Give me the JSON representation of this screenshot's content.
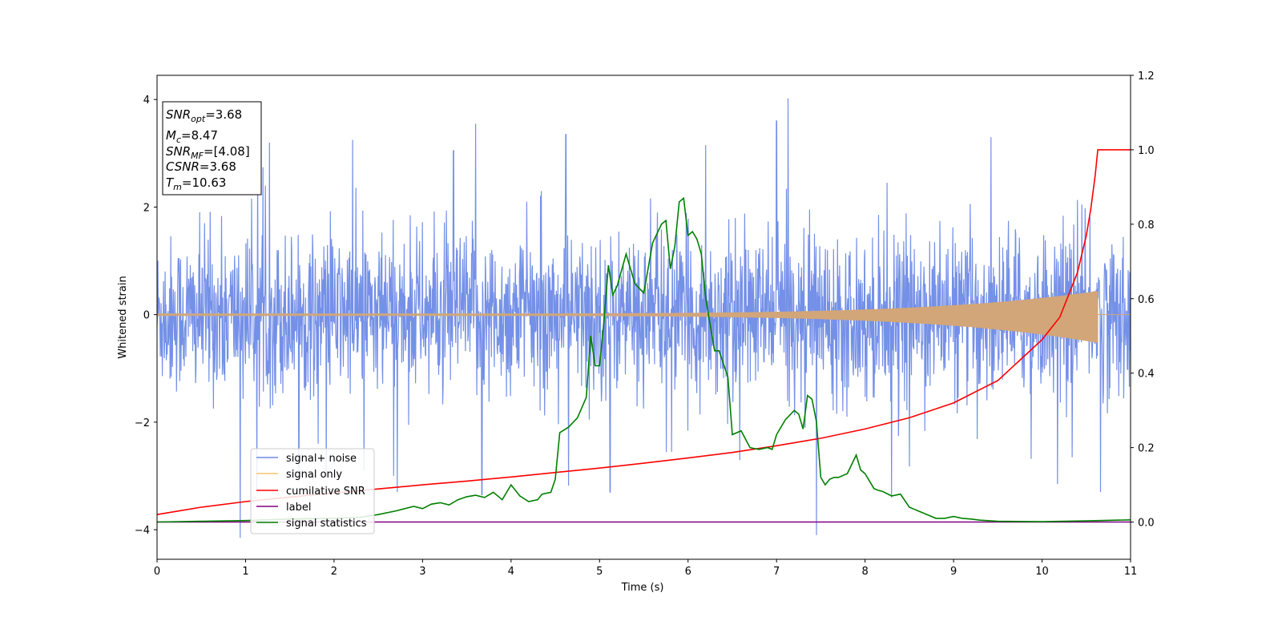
{
  "chart_data": {
    "type": "line",
    "xlabel": "Time (s)",
    "ylabel": "Whitened strain",
    "xlim": [
      0,
      11
    ],
    "ylim_left": [
      -4.55,
      4.45
    ],
    "ylim_right": [
      -0.1,
      1.2
    ],
    "x_ticks": [
      "0",
      "1",
      "2",
      "3",
      "4",
      "5",
      "6",
      "7",
      "8",
      "9",
      "10",
      "11"
    ],
    "y_left_ticks": [
      "4",
      "2",
      "0",
      "−2",
      "−4"
    ],
    "y_right_ticks": [
      "1.2",
      "1.0",
      "0.8",
      "0.6",
      "0.4",
      "0.2",
      "0.0"
    ],
    "grid": false,
    "legend_position": "lower-left",
    "info_box": {
      "snr_opt": {
        "base": "SNR",
        "sub": "opt",
        "value": "=3.68"
      },
      "mc": {
        "base": "M",
        "sub": "c",
        "value": "=8.47"
      },
      "snr_mf": {
        "base": "SNR",
        "sub": "MF",
        "value": "=[4.08]"
      },
      "csnr": {
        "base": "CSNR",
        "sub": "",
        "value": "=3.68"
      },
      "tm": {
        "base": "T",
        "sub": "m",
        "value": "=10.63"
      }
    },
    "series": [
      {
        "name": "signal+ noise",
        "axis": "left",
        "color": "#6d8ae6",
        "description_envelope": {
          "sigma": 0.72,
          "max": 4.02,
          "min": -4.15
        },
        "spikes": [
          [
            0.94,
            -4.15
          ],
          [
            1.27,
            3.2
          ],
          [
            1.6,
            -3.1
          ],
          [
            2.21,
            3.25
          ],
          [
            2.34,
            -2.9
          ],
          [
            3.35,
            3.05
          ],
          [
            3.6,
            3.55
          ],
          [
            3.67,
            -3.35
          ],
          [
            4.62,
            3.35
          ],
          [
            5.12,
            -3.3
          ],
          [
            6.2,
            3.15
          ],
          [
            7.13,
            4.02
          ],
          [
            7.0,
            3.6
          ],
          [
            7.45,
            -4.1
          ],
          [
            8.3,
            -3.4
          ],
          [
            10.66,
            -3.3
          ]
        ]
      },
      {
        "name": "signal only",
        "axis": "left",
        "color": "#d2a679",
        "chirp_end": 10.63,
        "max_amplitude": 0.42
      },
      {
        "name": "cumilative SNR",
        "axis": "right",
        "color": "#ff0000",
        "x": [
          0,
          0.5,
          1,
          1.5,
          2,
          2.5,
          3,
          3.5,
          4,
          4.5,
          5,
          5.5,
          6,
          6.5,
          7,
          7.5,
          8,
          8.5,
          9,
          9.5,
          10,
          10.2,
          10.4,
          10.5,
          10.55,
          10.6,
          10.63,
          11
        ],
        "y": [
          0.02,
          0.04,
          0.055,
          0.067,
          0.078,
          0.089,
          0.1,
          0.11,
          0.121,
          0.133,
          0.145,
          0.158,
          0.172,
          0.187,
          0.205,
          0.225,
          0.25,
          0.28,
          0.32,
          0.38,
          0.49,
          0.55,
          0.67,
          0.77,
          0.84,
          0.93,
          1.0,
          1.0
        ]
      },
      {
        "name": "label",
        "axis": "right",
        "color": "#800080",
        "x": [
          0,
          11
        ],
        "y": [
          0.0,
          0.0
        ]
      },
      {
        "name": "signal statistics",
        "axis": "right",
        "color": "#008000",
        "x": [
          0,
          0.5,
          1,
          1.5,
          2,
          2.3,
          2.5,
          2.7,
          2.9,
          3.0,
          3.1,
          3.2,
          3.3,
          3.4,
          3.5,
          3.6,
          3.7,
          3.8,
          3.9,
          4.0,
          4.1,
          4.2,
          4.3,
          4.35,
          4.45,
          4.5,
          4.55,
          4.65,
          4.75,
          4.85,
          4.9,
          4.95,
          5.0,
          5.05,
          5.1,
          5.15,
          5.2,
          5.3,
          5.4,
          5.5,
          5.6,
          5.7,
          5.75,
          5.8,
          5.85,
          5.9,
          5.95,
          6.0,
          6.05,
          6.1,
          6.15,
          6.2,
          6.3,
          6.35,
          6.45,
          6.5,
          6.55,
          6.6,
          6.7,
          6.8,
          6.9,
          6.95,
          7.0,
          7.05,
          7.1,
          7.2,
          7.25,
          7.3,
          7.35,
          7.4,
          7.45,
          7.5,
          7.55,
          7.6,
          7.65,
          7.7,
          7.8,
          7.9,
          7.95,
          8.0,
          8.05,
          8.1,
          8.15,
          8.2,
          8.3,
          8.4,
          8.5,
          8.6,
          8.7,
          8.8,
          8.9,
          9.0,
          9.1,
          9.2,
          9.3,
          9.5,
          10,
          10.5,
          11
        ],
        "y": [
          0.0,
          0.002,
          0.004,
          0.008,
          0.01,
          0.013,
          0.02,
          0.03,
          0.042,
          0.036,
          0.048,
          0.052,
          0.046,
          0.06,
          0.068,
          0.072,
          0.066,
          0.08,
          0.06,
          0.1,
          0.07,
          0.055,
          0.06,
          0.075,
          0.08,
          0.115,
          0.24,
          0.255,
          0.28,
          0.335,
          0.5,
          0.42,
          0.42,
          0.54,
          0.69,
          0.61,
          0.635,
          0.72,
          0.64,
          0.615,
          0.75,
          0.8,
          0.81,
          0.68,
          0.74,
          0.86,
          0.87,
          0.77,
          0.78,
          0.76,
          0.72,
          0.6,
          0.46,
          0.46,
          0.39,
          0.235,
          0.24,
          0.245,
          0.2,
          0.195,
          0.2,
          0.195,
          0.235,
          0.255,
          0.275,
          0.3,
          0.29,
          0.25,
          0.34,
          0.33,
          0.27,
          0.12,
          0.1,
          0.115,
          0.12,
          0.12,
          0.13,
          0.18,
          0.14,
          0.13,
          0.11,
          0.09,
          0.085,
          0.082,
          0.07,
          0.075,
          0.04,
          0.03,
          0.02,
          0.01,
          0.01,
          0.015,
          0.01,
          0.008,
          0.005,
          0.002,
          0.001,
          0.003,
          0.006
        ]
      }
    ]
  }
}
